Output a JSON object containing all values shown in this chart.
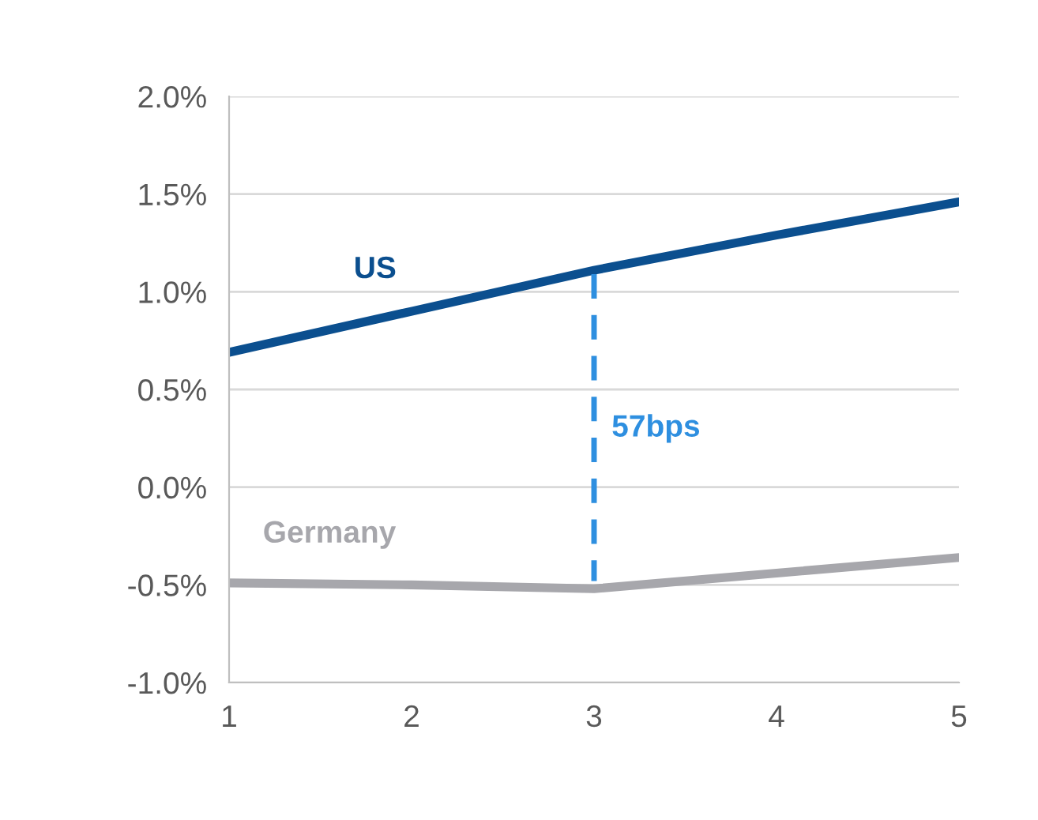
{
  "chart_data": {
    "type": "line",
    "x": [
      1,
      2,
      3,
      4,
      5
    ],
    "series": [
      {
        "name": "US",
        "color": "#0b4f8f",
        "values": [
          0.69,
          0.9,
          1.11,
          1.29,
          1.46
        ]
      },
      {
        "name": "Germany",
        "color": "#a7a7ac",
        "values": [
          -0.49,
          -0.5,
          -0.52,
          -0.44,
          -0.36
        ]
      },
      {
        "color": "#2e8fe0",
        "x": [
          3,
          3
        ],
        "values": [
          1.09,
          -0.48
        ],
        "line_style": "dashed"
      }
    ],
    "annotations": [
      {
        "text": "57bps",
        "x": 3,
        "y": 0.3
      }
    ],
    "xlim": [
      1,
      5
    ],
    "xticks": [
      1,
      2,
      3,
      4,
      5
    ],
    "ylim": [
      -1.0,
      2.0
    ],
    "yticks": [
      {
        "value": -1.0,
        "label": "-1.0%"
      },
      {
        "value": -0.5,
        "label": "-0.5%"
      },
      {
        "value": 0.0,
        "label": "0.0%"
      },
      {
        "value": 0.5,
        "label": "0.5%"
      },
      {
        "value": 1.0,
        "label": "1.0%"
      },
      {
        "value": 1.5,
        "label": "1.5%"
      },
      {
        "value": 2.0,
        "label": "2.0%"
      }
    ],
    "grid": "y",
    "legend": false,
    "line_style": "solid",
    "marker": "none"
  }
}
